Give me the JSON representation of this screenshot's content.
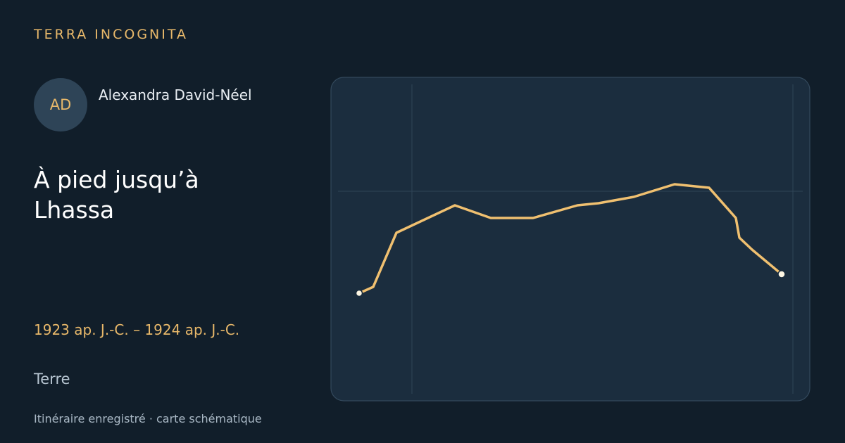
{
  "header": {
    "brand": "TERRA INCOGNITA"
  },
  "author": {
    "initials": "AD",
    "name": "Alexandra David-Néel"
  },
  "journey": {
    "title": "À pied jusqu’à Lhassa",
    "dates": "1923 ap. J.-C. – 1924 ap. J.-C.",
    "place": "Terre"
  },
  "footer": {
    "note": "Itinéraire enregistré · carte schématique"
  }
}
